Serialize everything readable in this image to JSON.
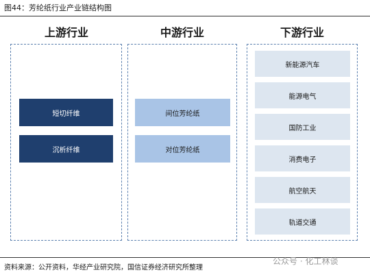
{
  "header": {
    "title": "图44：芳纶纸行业产业链结构图"
  },
  "columns": [
    {
      "title": "上游行业",
      "items": [
        "短切纤维",
        "沉析纤维"
      ]
    },
    {
      "title": "中游行业",
      "items": [
        "间位芳纶纸",
        "对位芳纶纸"
      ]
    },
    {
      "title": "下游行业",
      "items": [
        "新能源汽车",
        "能源电气",
        "国防工业",
        "消费电子",
        "航空航天",
        "轨道交通"
      ]
    }
  ],
  "footer": {
    "source": "资料来源：公开资料，华经产业研究院，国信证券经济研究所整理",
    "watermark": "公众号 · 化工林谈"
  }
}
